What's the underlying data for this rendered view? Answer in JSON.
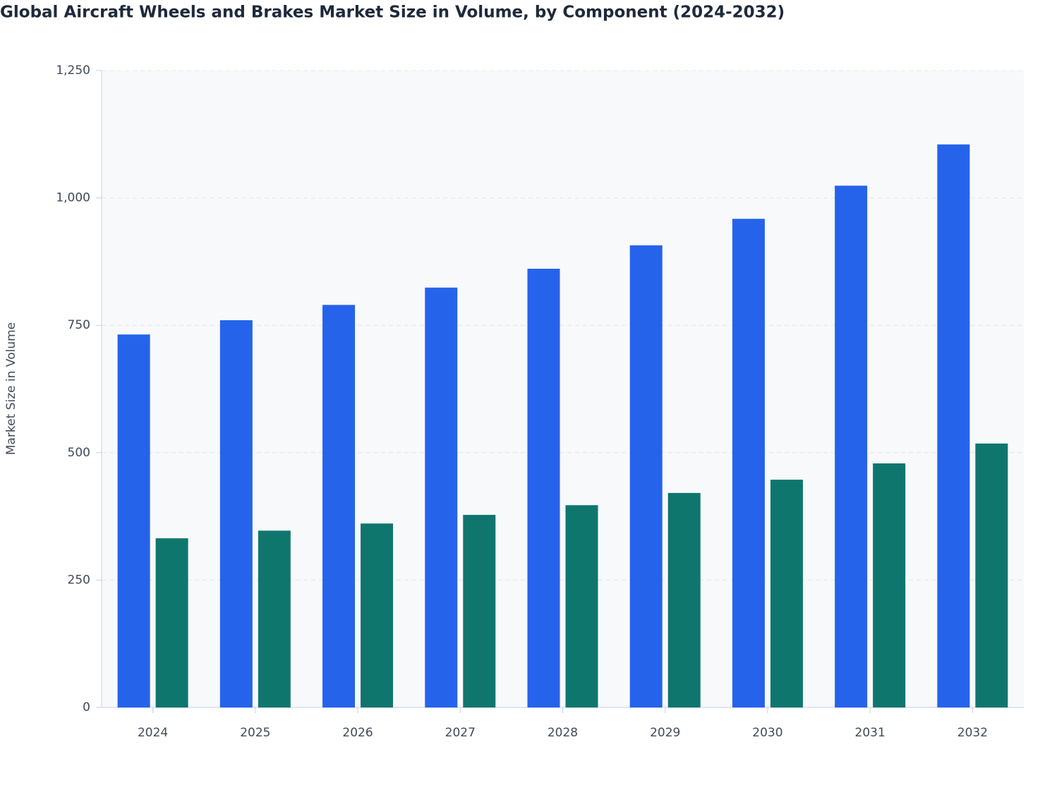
{
  "chart_data": {
    "type": "bar",
    "title": "Global Aircraft Wheels and Brakes Market Size in Volume, by Component (2024-2032)",
    "y_label": "Market Size in Volume",
    "categories": [
      "2024",
      "2025",
      "2026",
      "2027",
      "2028",
      "2029",
      "2030",
      "2031",
      "2032"
    ],
    "series": [
      {
        "color": "#2563eb",
        "values": [
          732,
          760,
          790,
          824,
          861,
          907,
          959,
          1024,
          1105
        ]
      },
      {
        "color": "#0f766e",
        "values": [
          332,
          347,
          361,
          378,
          397,
          421,
          447,
          479,
          518
        ]
      }
    ],
    "ylim": [
      0,
      1250
    ],
    "yticks": [
      0,
      250,
      500,
      750,
      {
        "value": 1000,
        "label": "1,000"
      },
      {
        "value": 1250,
        "label": "1,250"
      }
    ],
    "grid": true
  }
}
